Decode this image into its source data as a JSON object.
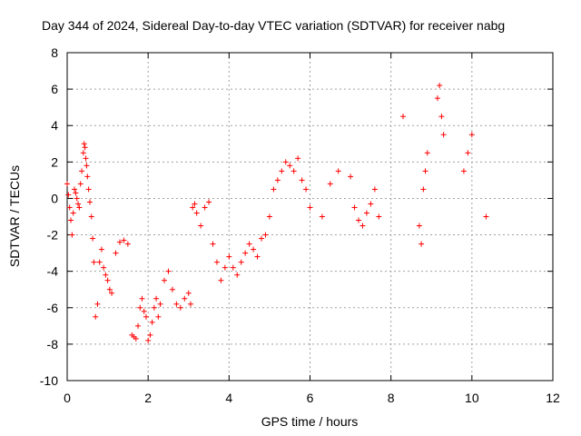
{
  "chart_data": {
    "type": "scatter",
    "title": "Day 344 of 2024, Sidereal Day-to-day VTEC variation (SDTVAR) for receiver nabg",
    "xlabel": "GPS time / hours",
    "ylabel": "SDTVAR / TECUs",
    "xlim": [
      0,
      12
    ],
    "ylim": [
      -10,
      8
    ],
    "x_ticks": [
      "0",
      "2",
      "4",
      "6",
      "8",
      "10",
      "12"
    ],
    "y_ticks": [
      "-10",
      "-8",
      "-6",
      "-4",
      "-2",
      "0",
      "2",
      "4",
      "6",
      "8"
    ],
    "grid": true,
    "marker": "+",
    "series": [
      {
        "name": "SDTVAR",
        "color": "#ff0000",
        "x": [
          0.0,
          0.03,
          0.06,
          0.09,
          0.12,
          0.15,
          0.18,
          0.21,
          0.24,
          0.27,
          0.3,
          0.33,
          0.36,
          0.4,
          0.42,
          0.44,
          0.46,
          0.48,
          0.5,
          0.53,
          0.56,
          0.6,
          0.63,
          0.66,
          0.7,
          0.75,
          0.8,
          0.85,
          0.9,
          0.95,
          1.0,
          1.05,
          1.1,
          1.2,
          1.3,
          1.4,
          1.5,
          1.6,
          1.65,
          1.7,
          1.75,
          1.8,
          1.85,
          1.9,
          1.95,
          2.0,
          2.05,
          2.1,
          2.15,
          2.2,
          2.25,
          2.3,
          2.4,
          2.5,
          2.6,
          2.7,
          2.8,
          2.9,
          3.0,
          3.05,
          3.1,
          3.15,
          3.2,
          3.3,
          3.4,
          3.5,
          3.6,
          3.7,
          3.8,
          3.9,
          4.0,
          4.1,
          4.2,
          4.3,
          4.4,
          4.5,
          4.6,
          4.7,
          4.8,
          4.9,
          5.0,
          5.1,
          5.2,
          5.3,
          5.4,
          5.5,
          5.6,
          5.7,
          5.8,
          5.9,
          6.0,
          6.3,
          6.5,
          6.7,
          7.0,
          7.1,
          7.2,
          7.3,
          7.4,
          7.5,
          7.6,
          7.7,
          8.3,
          8.7,
          8.75,
          8.8,
          8.85,
          8.9,
          9.15,
          9.2,
          9.25,
          9.3,
          9.8,
          9.9,
          10.0,
          10.35
        ],
        "y": [
          0.8,
          0.2,
          -0.5,
          -1.2,
          -2.0,
          -0.8,
          0.5,
          0.3,
          0.0,
          -0.3,
          -0.5,
          0.8,
          1.5,
          2.5,
          3.0,
          2.8,
          2.2,
          1.8,
          1.2,
          0.5,
          -0.2,
          -1.0,
          -2.2,
          -3.5,
          -6.5,
          -5.8,
          -3.5,
          -2.8,
          -3.8,
          -4.2,
          -4.5,
          -5.0,
          -5.2,
          -3.0,
          -2.4,
          -2.3,
          -2.5,
          -7.5,
          -7.6,
          -7.7,
          -7.0,
          -6.0,
          -5.5,
          -6.2,
          -6.5,
          -7.8,
          -7.5,
          -6.8,
          -6.0,
          -5.5,
          -6.5,
          -5.8,
          -4.5,
          -4.0,
          -5.0,
          -5.8,
          -6.0,
          -5.5,
          -5.2,
          -5.8,
          -0.5,
          -0.3,
          -0.8,
          -1.5,
          -0.5,
          -0.2,
          -2.5,
          -3.5,
          -4.5,
          -3.8,
          -3.2,
          -3.8,
          -4.2,
          -3.5,
          -3.0,
          -2.5,
          -2.8,
          -3.2,
          -2.2,
          -2.0,
          -1.0,
          0.5,
          1.0,
          1.5,
          2.0,
          1.8,
          1.5,
          2.2,
          1.0,
          0.5,
          -0.5,
          -1.0,
          0.8,
          1.5,
          1.2,
          -0.5,
          -1.2,
          -1.5,
          -0.8,
          -0.3,
          0.5,
          -1.0,
          4.5,
          -1.5,
          -2.5,
          0.5,
          1.5,
          2.5,
          5.5,
          6.2,
          4.5,
          3.5,
          1.5,
          2.5,
          3.5,
          -1.0
        ]
      }
    ]
  }
}
